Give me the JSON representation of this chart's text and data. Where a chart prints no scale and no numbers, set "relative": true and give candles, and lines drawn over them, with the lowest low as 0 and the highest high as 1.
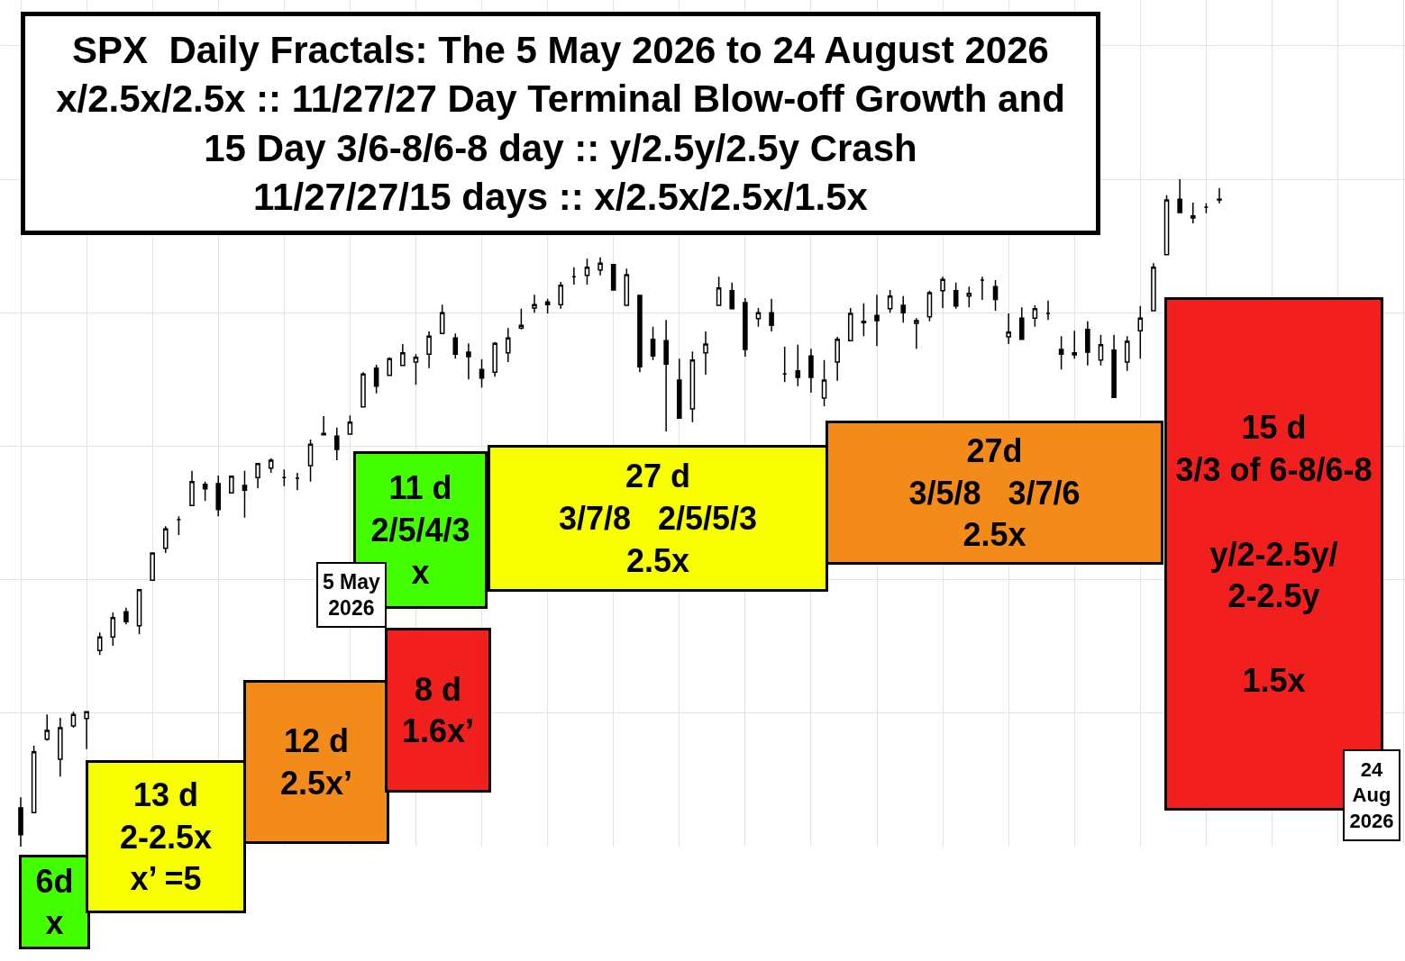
{
  "chart_data": {
    "type": "candlestick",
    "title": "SPX  Daily Fractals: The 5 May 2026 to 24 August 2026\nx/2.5x/2.5x :: 11/27/27 Day Terminal Blow-off Growth and\n15 Day 3/6-8/6-8 day :: y/2.5y/2.5y Crash\n11/27/27/15 days :: x/2.5x/2.5x/1.5x",
    "categories": [
      null,
      null,
      null,
      null,
      null,
      null,
      null,
      null,
      null,
      null,
      null,
      null,
      null,
      null,
      null,
      null,
      null,
      null,
      null,
      null,
      null,
      null,
      null,
      null,
      null,
      null,
      null,
      null,
      null,
      null,
      null,
      null,
      null,
      null,
      null,
      null,
      null,
      null,
      null,
      null,
      null,
      null,
      null,
      null,
      null,
      null,
      null,
      null,
      null,
      null,
      null,
      null,
      null,
      null,
      null,
      null,
      null,
      null,
      null,
      null,
      null,
      null,
      null,
      null,
      null,
      null,
      null,
      null,
      null,
      null,
      null,
      null,
      null,
      null,
      null,
      null,
      null,
      null,
      null,
      null,
      null,
      null,
      null,
      null,
      null,
      null,
      null,
      null,
      null,
      null,
      null,
      null
    ],
    "ohlc": [
      [
        0.058,
        0.074,
        0,
        0.018
      ],
      [
        0.051,
        0.151,
        0.051,
        0.142
      ],
      [
        0.161,
        0.198,
        0.159,
        0.174
      ],
      [
        0.131,
        0.193,
        0.105,
        0.178
      ],
      [
        0.181,
        0.202,
        0.178,
        0.198
      ],
      [
        0.192,
        0.202,
        0.146,
        0.202
      ],
      [
        0.294,
        0.321,
        0.287,
        0.314
      ],
      [
        0.314,
        0.351,
        0.301,
        0.343
      ],
      [
        0.352,
        0.358,
        0.333,
        0.337
      ],
      [
        0.331,
        0.386,
        0.318,
        0.385
      ],
      [
        0.399,
        0.44,
        0.398,
        0.44
      ],
      [
        0.447,
        0.48,
        0.44,
        0.476
      ],
      [
        0.49,
        0.495,
        0.467,
        0.49
      ],
      [
        0.511,
        0.563,
        0.51,
        0.547
      ],
      [
        0.543,
        0.547,
        0.518,
        0.536
      ],
      [
        0.544,
        0.556,
        0.495,
        0.505
      ],
      [
        0.53,
        0.556,
        0.53,
        0.555
      ],
      [
        0.541,
        0.563,
        0.493,
        0.534
      ],
      [
        0.553,
        0.575,
        0.537,
        0.574
      ],
      [
        0.567,
        0.582,
        0.56,
        0.579
      ],
      [
        0.553,
        0.565,
        0.54,
        0.553
      ],
      [
        0.552,
        0.56,
        0.534,
        0.552
      ],
      [
        0.571,
        0.61,
        0.547,
        0.603
      ],
      [
        0.619,
        0.645,
        0.617,
        0.617
      ],
      [
        0.615,
        0.628,
        0.579,
        0.595
      ],
      [
        0.618,
        0.646,
        0.618,
        0.636
      ],
      [
        0.659,
        0.711,
        0.659,
        0.708
      ],
      [
        0.717,
        0.722,
        0.679,
        0.69
      ],
      [
        0.706,
        0.733,
        0.706,
        0.731
      ],
      [
        0.721,
        0.753,
        0.721,
        0.74
      ],
      [
        0.726,
        0.738,
        0.692,
        0.733
      ],
      [
        0.738,
        0.772,
        0.717,
        0.765
      ],
      [
        0.769,
        0.812,
        0.769,
        0.8
      ],
      [
        0.762,
        0.769,
        0.731,
        0.738
      ],
      [
        0.741,
        0.754,
        0.7,
        0.734
      ],
      [
        0.715,
        0.73,
        0.688,
        0.702
      ],
      [
        0.711,
        0.756,
        0.704,
        0.754
      ],
      [
        0.74,
        0.777,
        0.726,
        0.762
      ],
      [
        0.777,
        0.806,
        0.775,
        0.781
      ],
      [
        0.807,
        0.827,
        0.8,
        0.812
      ],
      [
        0.816,
        0.821,
        0.799,
        0.812
      ],
      [
        0.812,
        0.846,
        0.806,
        0.841
      ],
      [
        0.854,
        0.868,
        0.842,
        0.854
      ],
      [
        0.856,
        0.881,
        0.842,
        0.868
      ],
      [
        0.864,
        0.883,
        0.856,
        0.874
      ],
      [
        0.872,
        0.872,
        0.834,
        0.834
      ],
      [
        0.811,
        0.866,
        0.811,
        0.857
      ],
      [
        0.826,
        0.827,
        0.711,
        0.719
      ],
      [
        0.76,
        0.779,
        0.729,
        0.735
      ],
      [
        0.758,
        0.789,
        0.622,
        0.723
      ],
      [
        0.699,
        0.731,
        0.641,
        0.642
      ],
      [
        0.656,
        0.742,
        0.636,
        0.729
      ],
      [
        0.74,
        0.772,
        0.707,
        0.753
      ],
      [
        0.811,
        0.854,
        0.811,
        0.837
      ],
      [
        0.833,
        0.845,
        0.806,
        0.806
      ],
      [
        0.815,
        0.822,
        0.734,
        0.745
      ],
      [
        0.791,
        0.807,
        0.779,
        0.8
      ],
      [
        0.8,
        0.821,
        0.772,
        0.781
      ],
      [
        0.708,
        0.749,
        0.696,
        0.708
      ],
      [
        0.713,
        0.752,
        0.69,
        0.703
      ],
      [
        0.735,
        0.746,
        0.68,
        0.703
      ],
      [
        0.672,
        0.729,
        0.66,
        0.699
      ],
      [
        0.726,
        0.764,
        0.698,
        0.76
      ],
      [
        0.758,
        0.807,
        0.757,
        0.799
      ],
      [
        0.785,
        0.814,
        0.765,
        0.787
      ],
      [
        0.796,
        0.827,
        0.75,
        0.788
      ],
      [
        0.806,
        0.834,
        0.8,
        0.825
      ],
      [
        0.811,
        0.825,
        0.785,
        0.8
      ],
      [
        0.784,
        0.792,
        0.746,
        0.788
      ],
      [
        0.794,
        0.833,
        0.787,
        0.83
      ],
      [
        0.833,
        0.854,
        0.807,
        0.85
      ],
      [
        0.833,
        0.845,
        0.806,
        0.81
      ],
      [
        0.825,
        0.839,
        0.808,
        0.829
      ],
      [
        0.849,
        0.854,
        0.819,
        0.849
      ],
      [
        0.839,
        0.849,
        0.803,
        0.82
      ],
      [
        0.764,
        0.799,
        0.753,
        0.771
      ],
      [
        0.792,
        0.808,
        0.76,
        0.76
      ],
      [
        0.792,
        0.811,
        0.779,
        0.806
      ],
      [
        0.799,
        0.818,
        0.789,
        0.799
      ],
      [
        0.745,
        0.765,
        0.715,
        0.738
      ],
      [
        0.737,
        0.773,
        0.731,
        0.74
      ],
      [
        0.775,
        0.787,
        0.721,
        0.741
      ],
      [
        0.729,
        0.767,
        0.721,
        0.752
      ],
      [
        0.744,
        0.767,
        0.673,
        0.673
      ],
      [
        0.726,
        0.765,
        0.713,
        0.757
      ],
      [
        0.773,
        0.81,
        0.731,
        0.792
      ],
      [
        0.803,
        0.874,
        0.802,
        0.868
      ],
      [
        0.887,
        0.976,
        0.887,
        0.969
      ],
      [
        0.97,
        1,
        0.949,
        0.95
      ],
      [
        0.945,
        0.965,
        0.934,
        0.942
      ],
      [
        0.958,
        0.964,
        0.949,
        0.958
      ],
      [
        0.969,
        0.987,
        0.964,
        0.97
      ]
    ],
    "color": "#000000",
    "relative": true,
    "grid": true,
    "tick_labels": false,
    "annotations": [
      "6d\nx",
      "13 d\n2-2.5x\nx’ =5",
      "12 d\n2.5x’",
      "8 d\n1.6x’",
      "11 d\n2/5/4/3\nx",
      "5 May\n2026",
      "27 d\n3/7/8   2/5/5/3\n2.5x",
      "27d\n3/5/8   3/7/6\n2.5x",
      "15 d\n3/3 of 6-8/6-8\n\ny/2-2.5y/\n2-2.5y\n\n1.5x",
      "24\nAug\n2026"
    ]
  }
}
